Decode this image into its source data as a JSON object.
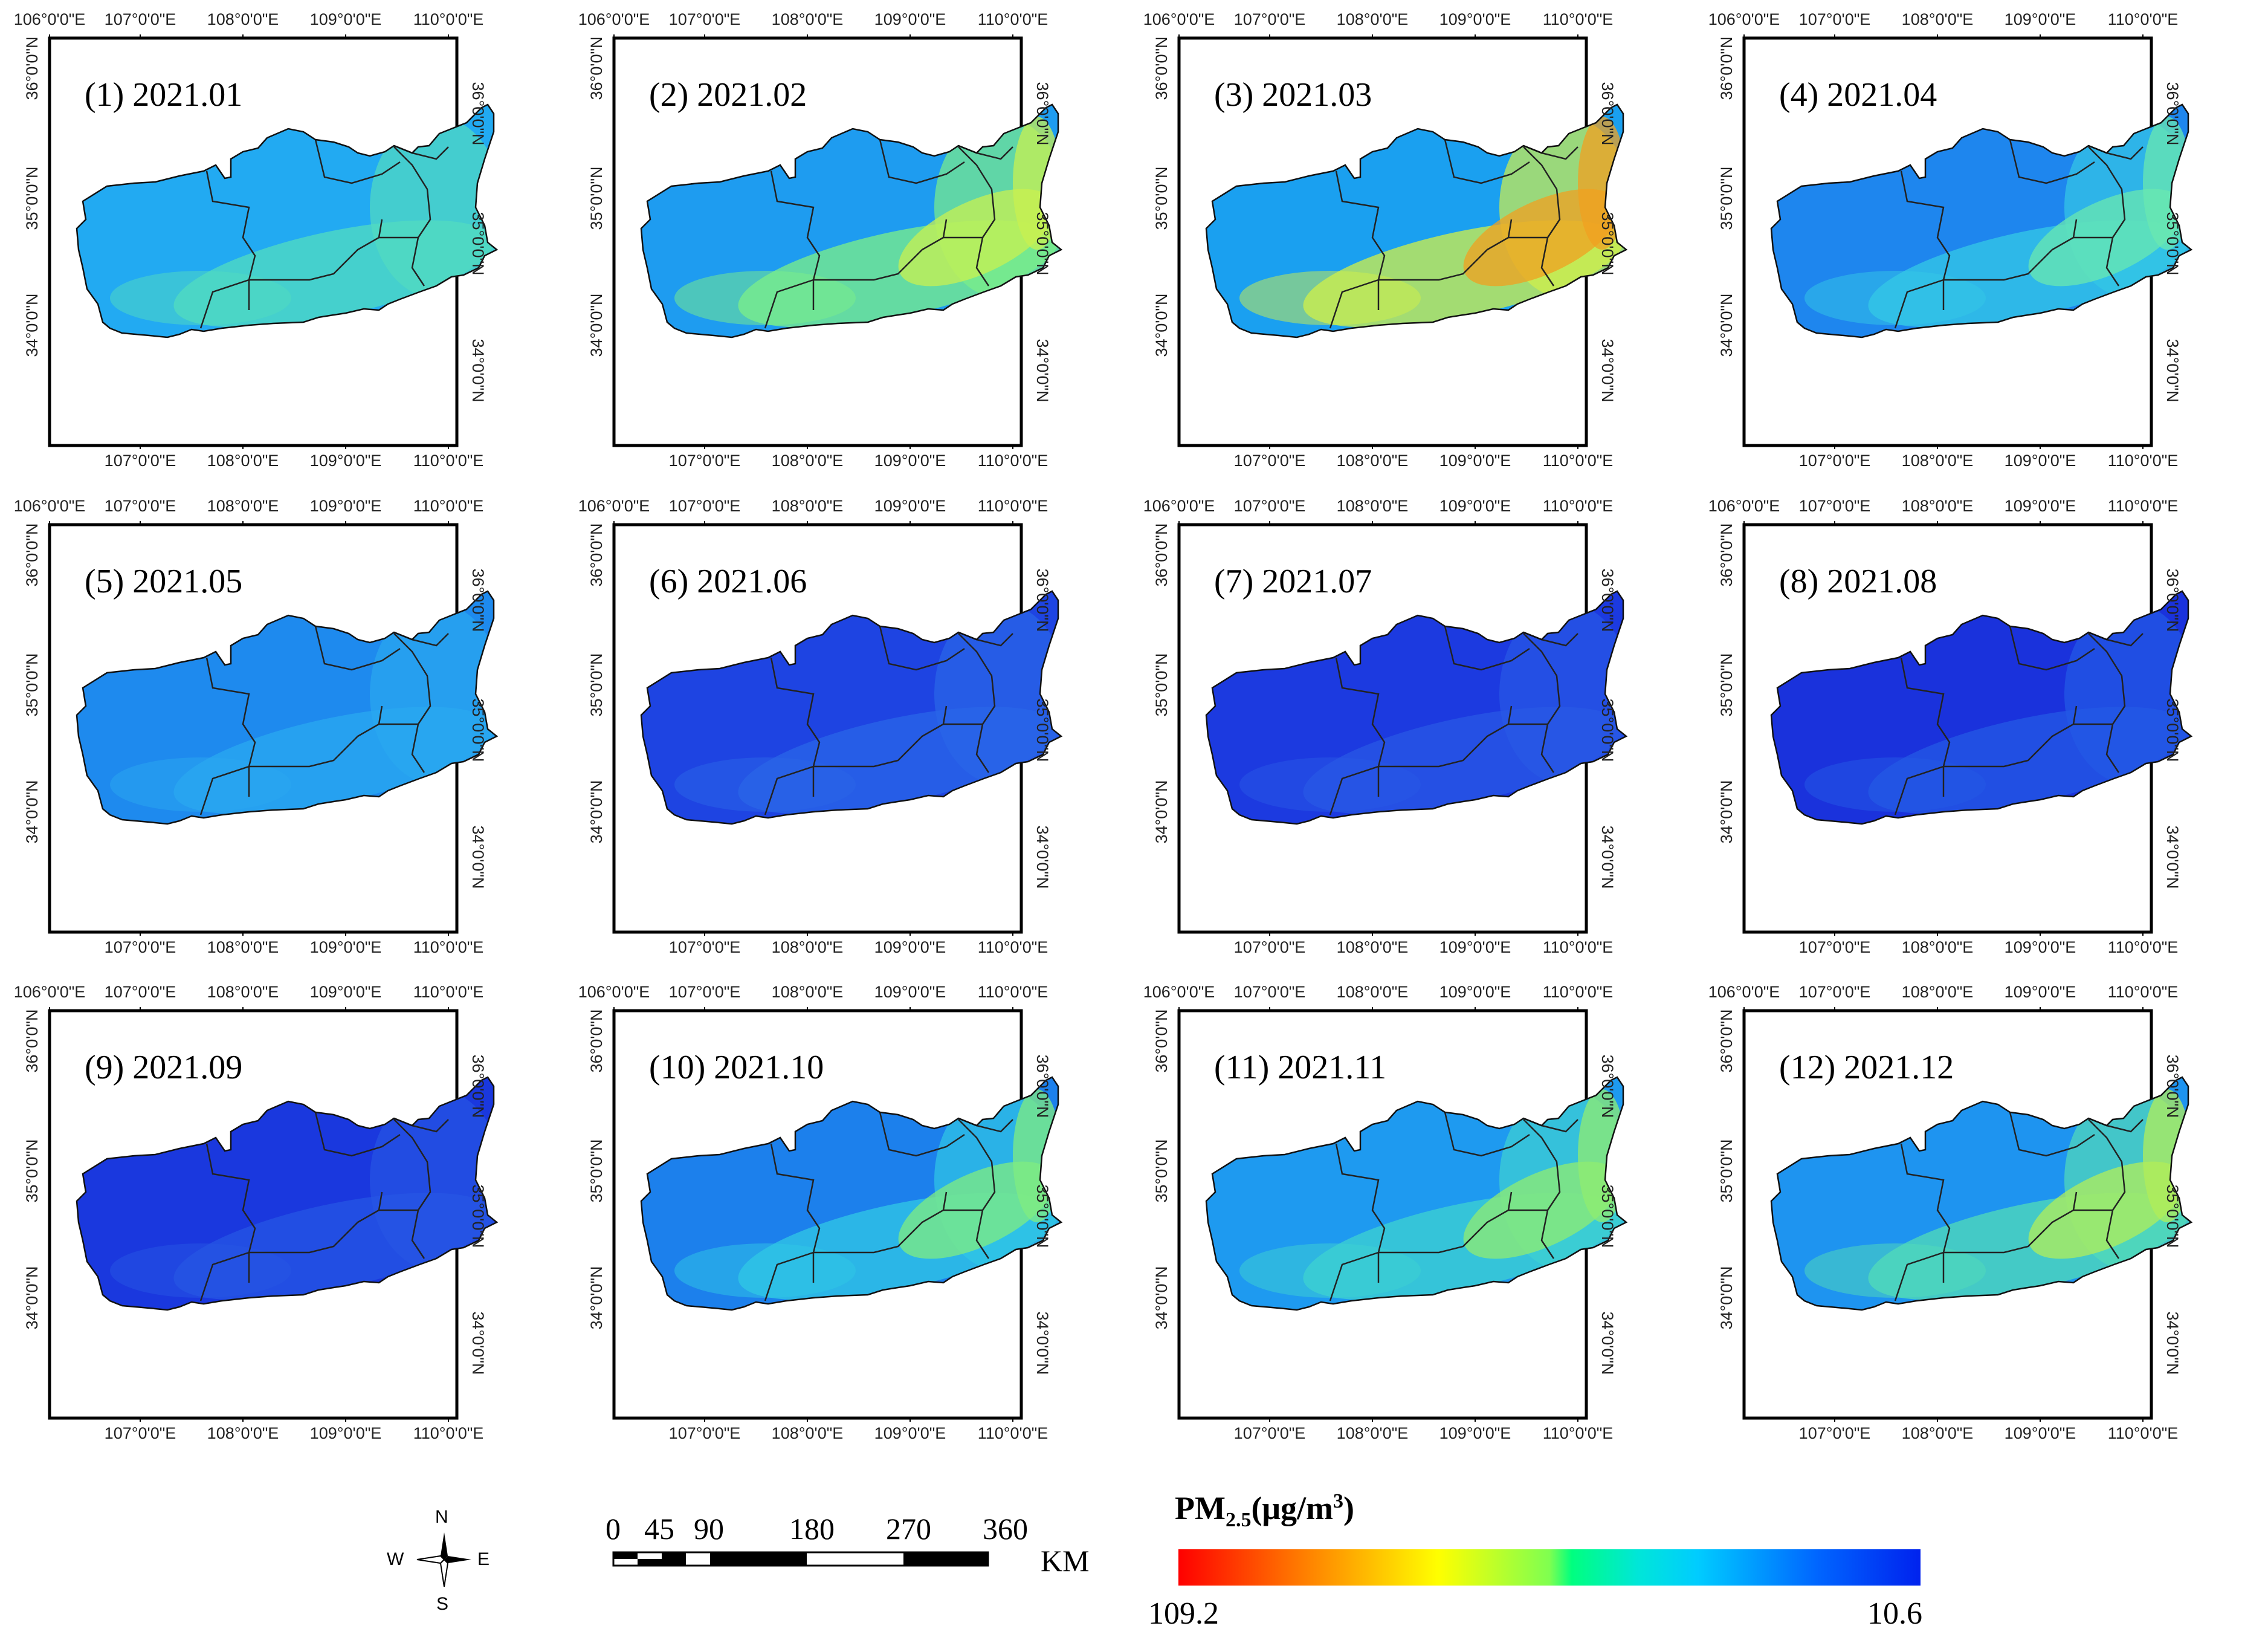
{
  "panels": [
    {
      "label": "(1) 2021.01",
      "fill": "#22aaf2",
      "hot": "#52dcc0",
      "hot2": null
    },
    {
      "label": "(2) 2021.02",
      "fill": "#1e9cf0",
      "hot": "#7cf088",
      "hot2": "#c8f050"
    },
    {
      "label": "(3) 2021.03",
      "fill": "#1aa0f0",
      "hot": "#d2f048",
      "hot2": "#f0a020"
    },
    {
      "label": "(4) 2021.04",
      "fill": "#1e86ee",
      "hot": "#34c8e6",
      "hot2": "#6ae8b0"
    },
    {
      "label": "(5) 2021.05",
      "fill": "#1e8aee",
      "hot": "#2aa8f0",
      "hot2": null
    },
    {
      "label": "(6) 2021.06",
      "fill": "#1e44e2",
      "hot": "#2a66e8",
      "hot2": null
    },
    {
      "label": "(7) 2021.07",
      "fill": "#1c3ae0",
      "hot": "#2858e6",
      "hot2": null
    },
    {
      "label": "(8) 2021.08",
      "fill": "#1a32dc",
      "hot": "#245ae6",
      "hot2": null
    },
    {
      "label": "(9) 2021.09",
      "fill": "#1a38de",
      "hot": "#2656e4",
      "hot2": null
    },
    {
      "label": "(10) 2021.10",
      "fill": "#1c80ec",
      "hot": "#30c8e6",
      "hot2": "#80ec80"
    },
    {
      "label": "(11) 2021.11",
      "fill": "#1e9af0",
      "hot": "#3ed2d2",
      "hot2": "#90ec70"
    },
    {
      "label": "(12) 2021.12",
      "fill": "#1e94f0",
      "hot": "#52dcb8",
      "hot2": "#b2ee58"
    }
  ],
  "axes": {
    "lon_labels": [
      "106°0'0\"E",
      "107°0'0\"E",
      "108°0'0\"E",
      "109°0'0\"E",
      "110°0'0\"E"
    ],
    "lon_bottom_labels": [
      "107°0'0\"E",
      "108°0'0\"E",
      "109°0'0\"E",
      "110°0'0\"E"
    ],
    "lat_labels": [
      "36°0'0\"N",
      "35°0'0\"N",
      "34°0'0\"N"
    ]
  },
  "legend": {
    "title_main": "PM",
    "title_sub": "2.5",
    "title_unit": "(μg/m",
    "title_sup": "3",
    "title_close": ")",
    "min_label": "109.2",
    "max_label": "10.6"
  },
  "scalebar": {
    "ticks": [
      "0",
      "45",
      "90",
      "180",
      "270",
      "360"
    ],
    "unit": "KM"
  },
  "compass": {
    "n": "N",
    "s": "S",
    "e": "E",
    "w": "W"
  },
  "colors": {
    "frame": "#000000",
    "boundary": "#222222"
  }
}
